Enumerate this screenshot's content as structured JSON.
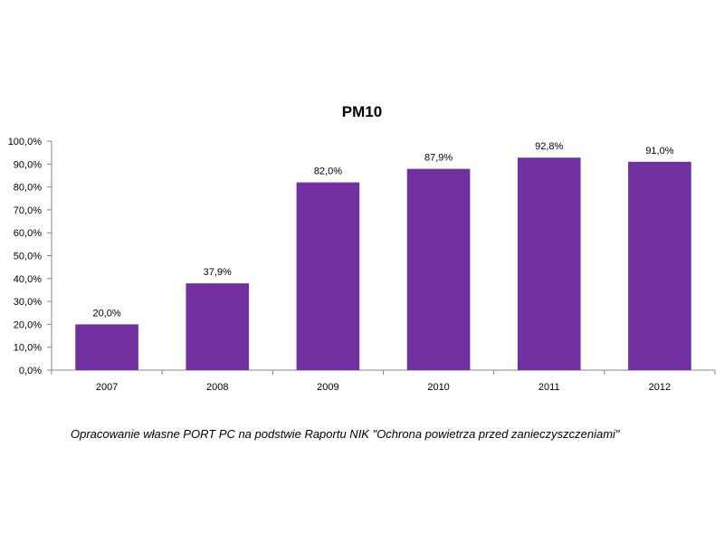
{
  "chart_data": {
    "type": "bar",
    "title": "PM10",
    "categories": [
      "2007",
      "2008",
      "2009",
      "2010",
      "2011",
      "2012"
    ],
    "values": [
      20.0,
      37.9,
      82.0,
      87.9,
      92.8,
      91.0
    ],
    "data_labels": [
      "20,0%",
      "37,9%",
      "82,0%",
      "87,9%",
      "92,8%",
      "91,0%"
    ],
    "y_ticks": [
      0,
      10,
      20,
      30,
      40,
      50,
      60,
      70,
      80,
      90,
      100
    ],
    "y_tick_labels": [
      "0,0%",
      "10,0%",
      "20,0%",
      "30,0%",
      "40,0%",
      "50,0%",
      "60,0%",
      "70,0%",
      "80,0%",
      "90,0%",
      "100,0%"
    ],
    "ylim": [
      0,
      100
    ],
    "grid": false,
    "legend": "none",
    "bar_color": "#7030A0",
    "xlabel": "",
    "ylabel": ""
  },
  "source_note": "Opracowanie własne PORT PC na podstwie Raportu NIK \"Ochrona powietrza przed zanieczyszczeniami\""
}
